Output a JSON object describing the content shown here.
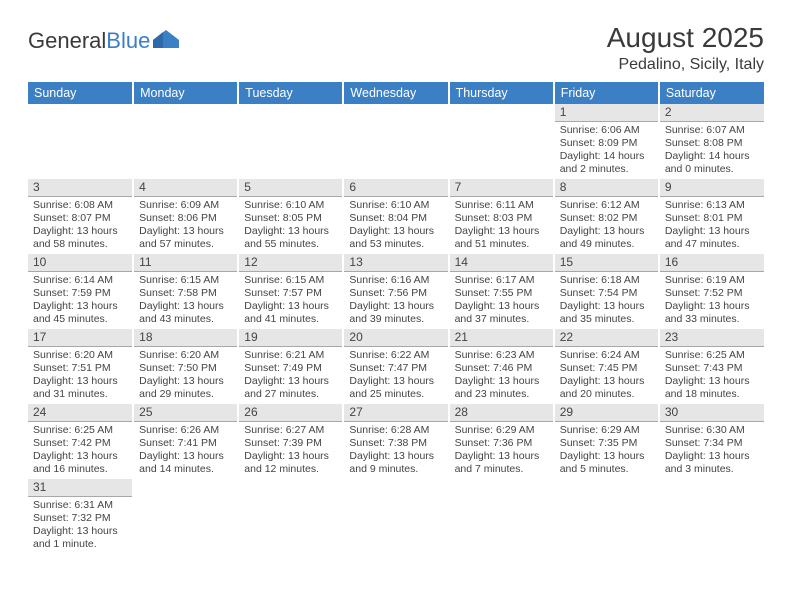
{
  "logo": {
    "text1": "General",
    "text2": "Blue"
  },
  "title": "August 2025",
  "location": "Pedalino, Sicily, Italy",
  "colors": {
    "header_bg": "#3b7fc4",
    "header_text": "#ffffff",
    "daynum_bg": "#e6e6e6",
    "daynum_border": "#a8a8a8",
    "text": "#444444",
    "page_bg": "#ffffff"
  },
  "weekdays": [
    "Sunday",
    "Monday",
    "Tuesday",
    "Wednesday",
    "Thursday",
    "Friday",
    "Saturday"
  ],
  "weeks": [
    [
      {
        "num": "",
        "l1": "",
        "l2": "",
        "l3": ""
      },
      {
        "num": "",
        "l1": "",
        "l2": "",
        "l3": ""
      },
      {
        "num": "",
        "l1": "",
        "l2": "",
        "l3": ""
      },
      {
        "num": "",
        "l1": "",
        "l2": "",
        "l3": ""
      },
      {
        "num": "",
        "l1": "",
        "l2": "",
        "l3": ""
      },
      {
        "num": "1",
        "l1": "Sunrise: 6:06 AM",
        "l2": "Sunset: 8:09 PM",
        "l3": "Daylight: 14 hours and 2 minutes."
      },
      {
        "num": "2",
        "l1": "Sunrise: 6:07 AM",
        "l2": "Sunset: 8:08 PM",
        "l3": "Daylight: 14 hours and 0 minutes."
      }
    ],
    [
      {
        "num": "3",
        "l1": "Sunrise: 6:08 AM",
        "l2": "Sunset: 8:07 PM",
        "l3": "Daylight: 13 hours and 58 minutes."
      },
      {
        "num": "4",
        "l1": "Sunrise: 6:09 AM",
        "l2": "Sunset: 8:06 PM",
        "l3": "Daylight: 13 hours and 57 minutes."
      },
      {
        "num": "5",
        "l1": "Sunrise: 6:10 AM",
        "l2": "Sunset: 8:05 PM",
        "l3": "Daylight: 13 hours and 55 minutes."
      },
      {
        "num": "6",
        "l1": "Sunrise: 6:10 AM",
        "l2": "Sunset: 8:04 PM",
        "l3": "Daylight: 13 hours and 53 minutes."
      },
      {
        "num": "7",
        "l1": "Sunrise: 6:11 AM",
        "l2": "Sunset: 8:03 PM",
        "l3": "Daylight: 13 hours and 51 minutes."
      },
      {
        "num": "8",
        "l1": "Sunrise: 6:12 AM",
        "l2": "Sunset: 8:02 PM",
        "l3": "Daylight: 13 hours and 49 minutes."
      },
      {
        "num": "9",
        "l1": "Sunrise: 6:13 AM",
        "l2": "Sunset: 8:01 PM",
        "l3": "Daylight: 13 hours and 47 minutes."
      }
    ],
    [
      {
        "num": "10",
        "l1": "Sunrise: 6:14 AM",
        "l2": "Sunset: 7:59 PM",
        "l3": "Daylight: 13 hours and 45 minutes."
      },
      {
        "num": "11",
        "l1": "Sunrise: 6:15 AM",
        "l2": "Sunset: 7:58 PM",
        "l3": "Daylight: 13 hours and 43 minutes."
      },
      {
        "num": "12",
        "l1": "Sunrise: 6:15 AM",
        "l2": "Sunset: 7:57 PM",
        "l3": "Daylight: 13 hours and 41 minutes."
      },
      {
        "num": "13",
        "l1": "Sunrise: 6:16 AM",
        "l2": "Sunset: 7:56 PM",
        "l3": "Daylight: 13 hours and 39 minutes."
      },
      {
        "num": "14",
        "l1": "Sunrise: 6:17 AM",
        "l2": "Sunset: 7:55 PM",
        "l3": "Daylight: 13 hours and 37 minutes."
      },
      {
        "num": "15",
        "l1": "Sunrise: 6:18 AM",
        "l2": "Sunset: 7:54 PM",
        "l3": "Daylight: 13 hours and 35 minutes."
      },
      {
        "num": "16",
        "l1": "Sunrise: 6:19 AM",
        "l2": "Sunset: 7:52 PM",
        "l3": "Daylight: 13 hours and 33 minutes."
      }
    ],
    [
      {
        "num": "17",
        "l1": "Sunrise: 6:20 AM",
        "l2": "Sunset: 7:51 PM",
        "l3": "Daylight: 13 hours and 31 minutes."
      },
      {
        "num": "18",
        "l1": "Sunrise: 6:20 AM",
        "l2": "Sunset: 7:50 PM",
        "l3": "Daylight: 13 hours and 29 minutes."
      },
      {
        "num": "19",
        "l1": "Sunrise: 6:21 AM",
        "l2": "Sunset: 7:49 PM",
        "l3": "Daylight: 13 hours and 27 minutes."
      },
      {
        "num": "20",
        "l1": "Sunrise: 6:22 AM",
        "l2": "Sunset: 7:47 PM",
        "l3": "Daylight: 13 hours and 25 minutes."
      },
      {
        "num": "21",
        "l1": "Sunrise: 6:23 AM",
        "l2": "Sunset: 7:46 PM",
        "l3": "Daylight: 13 hours and 23 minutes."
      },
      {
        "num": "22",
        "l1": "Sunrise: 6:24 AM",
        "l2": "Sunset: 7:45 PM",
        "l3": "Daylight: 13 hours and 20 minutes."
      },
      {
        "num": "23",
        "l1": "Sunrise: 6:25 AM",
        "l2": "Sunset: 7:43 PM",
        "l3": "Daylight: 13 hours and 18 minutes."
      }
    ],
    [
      {
        "num": "24",
        "l1": "Sunrise: 6:25 AM",
        "l2": "Sunset: 7:42 PM",
        "l3": "Daylight: 13 hours and 16 minutes."
      },
      {
        "num": "25",
        "l1": "Sunrise: 6:26 AM",
        "l2": "Sunset: 7:41 PM",
        "l3": "Daylight: 13 hours and 14 minutes."
      },
      {
        "num": "26",
        "l1": "Sunrise: 6:27 AM",
        "l2": "Sunset: 7:39 PM",
        "l3": "Daylight: 13 hours and 12 minutes."
      },
      {
        "num": "27",
        "l1": "Sunrise: 6:28 AM",
        "l2": "Sunset: 7:38 PM",
        "l3": "Daylight: 13 hours and 9 minutes."
      },
      {
        "num": "28",
        "l1": "Sunrise: 6:29 AM",
        "l2": "Sunset: 7:36 PM",
        "l3": "Daylight: 13 hours and 7 minutes."
      },
      {
        "num": "29",
        "l1": "Sunrise: 6:29 AM",
        "l2": "Sunset: 7:35 PM",
        "l3": "Daylight: 13 hours and 5 minutes."
      },
      {
        "num": "30",
        "l1": "Sunrise: 6:30 AM",
        "l2": "Sunset: 7:34 PM",
        "l3": "Daylight: 13 hours and 3 minutes."
      }
    ],
    [
      {
        "num": "31",
        "l1": "Sunrise: 6:31 AM",
        "l2": "Sunset: 7:32 PM",
        "l3": "Daylight: 13 hours and 1 minute."
      },
      {
        "num": "",
        "l1": "",
        "l2": "",
        "l3": ""
      },
      {
        "num": "",
        "l1": "",
        "l2": "",
        "l3": ""
      },
      {
        "num": "",
        "l1": "",
        "l2": "",
        "l3": ""
      },
      {
        "num": "",
        "l1": "",
        "l2": "",
        "l3": ""
      },
      {
        "num": "",
        "l1": "",
        "l2": "",
        "l3": ""
      },
      {
        "num": "",
        "l1": "",
        "l2": "",
        "l3": ""
      }
    ]
  ]
}
